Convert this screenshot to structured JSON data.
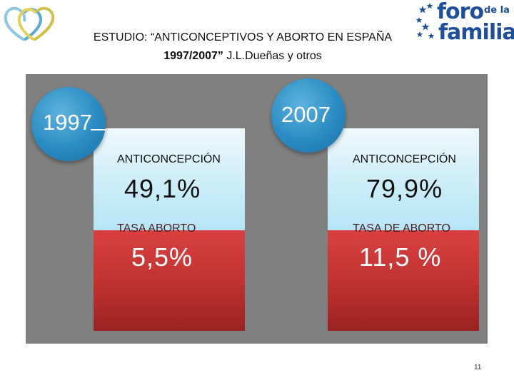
{
  "header": {
    "title_line1": "ESTUDIO: “ANTICONCEPTIVOS Y ABORTO EN ESPAÑA",
    "title_line2_bold": "1997/2007”",
    "title_line2_rest": " J.L.Dueñas y otros"
  },
  "logo_right": {
    "word1": "foro",
    "word_small": "de la",
    "word2": "familia"
  },
  "columns": [
    {
      "year": "1997",
      "contraception_label": "ANTICONCEPCIÓN",
      "contraception_value": "49,1%",
      "abortion_label": "TASA ABORTO",
      "abortion_value": "5,5%"
    },
    {
      "year": "2007",
      "contraception_label": "ANTICONCEPCIÓN",
      "contraception_value": "79,9%",
      "abortion_label": "TASA DE ABORTO",
      "abortion_value": "11,5 %"
    }
  ],
  "page_number": "11",
  "colors": {
    "circle_blue": "#2a8cc4",
    "panel_gray": "#808080",
    "light_blue": "#c9ecf8",
    "red": "#c03131",
    "brand_blue": "#1f4f9a"
  }
}
